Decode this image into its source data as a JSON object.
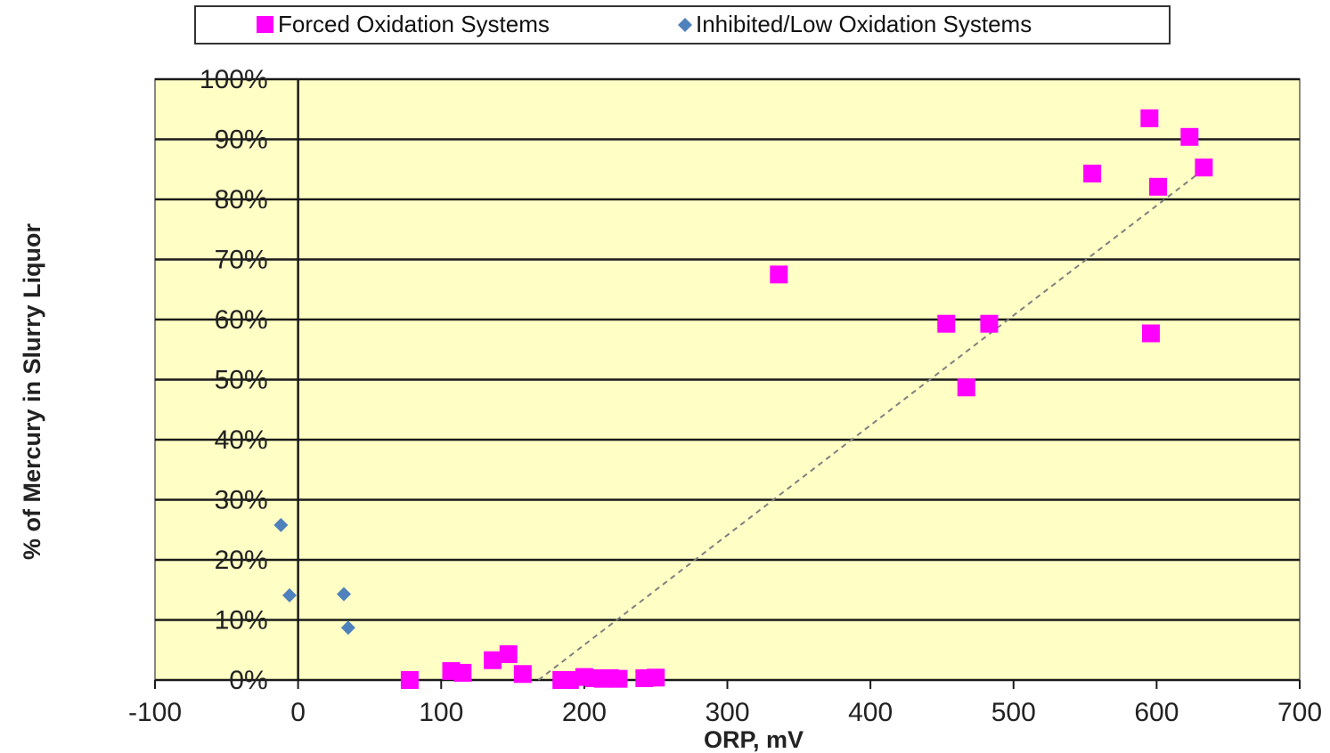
{
  "chart_data": {
    "type": "scatter",
    "xlabel": "ORP, mV",
    "ylabel": "% of Mercury in Slurry Liquor",
    "xlim": [
      -100,
      700
    ],
    "ylim": [
      0,
      100
    ],
    "x_ticks": [
      -100,
      0,
      100,
      200,
      300,
      400,
      500,
      600,
      700
    ],
    "x_tick_labels": [
      "-100",
      "0",
      "100",
      "200",
      "300",
      "400",
      "500",
      "600",
      "700"
    ],
    "y_ticks": [
      0,
      10,
      20,
      30,
      40,
      50,
      60,
      70,
      80,
      90,
      100
    ],
    "y_tick_labels": [
      "0%",
      "10%",
      "20%",
      "30%",
      "40%",
      "50%",
      "60%",
      "70%",
      "80%",
      "90%",
      "100%"
    ],
    "grid": "horizontal",
    "legend_position": "top",
    "series": [
      {
        "name": "Forced Oxidation Systems",
        "marker": "square",
        "color": "#ff00ff",
        "x": [
          78,
          107,
          115,
          136,
          147,
          157,
          184,
          190,
          200,
          207,
          213,
          218,
          224,
          242,
          250,
          336,
          453,
          467,
          483,
          555,
          595,
          596,
          601,
          623,
          633
        ],
        "y": [
          0,
          1.5,
          1.2,
          3.3,
          4.3,
          1,
          0,
          0,
          0.5,
          0.3,
          0.2,
          0.3,
          0.2,
          0.3,
          0.4,
          67.5,
          59.3,
          48.7,
          59.3,
          84.3,
          93.5,
          57.7,
          82.1,
          90.4,
          85.3
        ]
      },
      {
        "name": "Inhibited/Low Oxidation Systems",
        "marker": "diamond",
        "color": "#4f81bd",
        "x": [
          -12,
          -6,
          32,
          35
        ],
        "y": [
          25.8,
          14.1,
          14.3,
          8.7
        ]
      }
    ],
    "trendline": {
      "style": "dashed",
      "color": "#7f7f7f",
      "x": [
        168,
        633
      ],
      "y": [
        0,
        85
      ]
    }
  }
}
